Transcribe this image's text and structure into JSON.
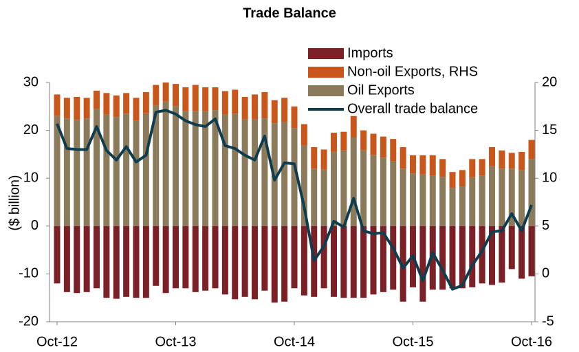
{
  "chart_data": {
    "type": "bar",
    "title": "Trade Balance",
    "y_label": "($ billion)",
    "categories": [
      "Oct-12",
      null,
      null,
      null,
      null,
      null,
      null,
      null,
      null,
      null,
      null,
      null,
      "Oct-13",
      null,
      null,
      null,
      null,
      null,
      null,
      null,
      null,
      null,
      null,
      null,
      "Oct-14",
      null,
      null,
      null,
      null,
      null,
      null,
      null,
      null,
      null,
      null,
      null,
      "Oct-15",
      null,
      null,
      null,
      null,
      null,
      null,
      null,
      null,
      null,
      null,
      null,
      "Oct-16"
    ],
    "ylim": [
      -20,
      30
    ],
    "yticks": [
      -20,
      -10,
      0,
      10,
      20,
      30
    ],
    "y2lim": [
      -5,
      20
    ],
    "y2ticks": [
      -5,
      0,
      5,
      10,
      15,
      20
    ],
    "legend": "upper right",
    "series": [
      {
        "name": "Imports",
        "color": "#7b2027",
        "values": [
          -12,
          -13.8,
          -14,
          -13.8,
          -13,
          -15,
          -15.2,
          -14.8,
          -15,
          -15,
          -12.5,
          -14,
          -13,
          -13,
          -13.8,
          -13.5,
          -13,
          -14.3,
          -15.3,
          -14.8,
          -15.3,
          -13.5,
          -16,
          -15.8,
          -13,
          -14.5,
          -14.8,
          -13,
          -14.8,
          -15,
          -15,
          -15,
          -14.3,
          -13.8,
          -13.3,
          -15.8,
          -12.8,
          -15.8,
          -13.3,
          -13.3,
          -13,
          -13,
          -12.8,
          -12,
          -12.3,
          -11.8,
          -9,
          -11,
          -10.5
        ]
      },
      {
        "name": "Non-oil Exports, RHS",
        "color": "#c9571c",
        "values": [
          4.5,
          4.3,
          4.8,
          4.3,
          3.8,
          4.5,
          4.5,
          4.3,
          4.8,
          4.5,
          4.3,
          4,
          4.7,
          5,
          5.5,
          5,
          4.8,
          4.9,
          5,
          4.7,
          5.2,
          5.5,
          4.8,
          5.1,
          4.5,
          4.5,
          4.5,
          4.2,
          4,
          3.9,
          4.5,
          4.2,
          4.5,
          4.4,
          4.7,
          4.5,
          3.8,
          4,
          4.3,
          3.7,
          3.3,
          3.4,
          3.8,
          3.5,
          4,
          3.8,
          3.3,
          3.8,
          4
        ]
      },
      {
        "name": "Oil Exports",
        "color": "#8c7b5a",
        "values": [
          23,
          22.5,
          22.2,
          22.5,
          24.5,
          23.3,
          22.8,
          23.5,
          22,
          23.5,
          25.2,
          26,
          25,
          24,
          24,
          24,
          24.2,
          23.3,
          23.5,
          22.3,
          22.3,
          22.5,
          21.5,
          21.7,
          20.5,
          16.8,
          12,
          11.8,
          15.5,
          15.8,
          18.5,
          15.8,
          14.8,
          14.3,
          13.5,
          12,
          11,
          10.8,
          10.5,
          10.3,
          8,
          8.3,
          10.2,
          10.5,
          12.5,
          12,
          12,
          11.7,
          14
        ]
      },
      {
        "name": "Overall trade balance",
        "type": "line",
        "axis": "y2",
        "color": "#0d3d4f",
        "values": [
          15.7,
          13.1,
          13,
          13,
          15.4,
          12.9,
          11.9,
          13.3,
          11.7,
          12.4,
          16.9,
          17.1,
          16.7,
          16,
          15.6,
          15.4,
          16.2,
          13.4,
          13.1,
          12.4,
          11.9,
          14.4,
          9.8,
          11.6,
          11.5,
          7,
          1.4,
          2.9,
          5.5,
          4.9,
          7.9,
          4.5,
          4.2,
          4.3,
          2.7,
          0.6,
          1.9,
          -0.7,
          2.2,
          0.4,
          -1.6,
          -1.2,
          0.9,
          2.4,
          4.4,
          4.5,
          6.3,
          4.5,
          7.2
        ]
      }
    ]
  }
}
